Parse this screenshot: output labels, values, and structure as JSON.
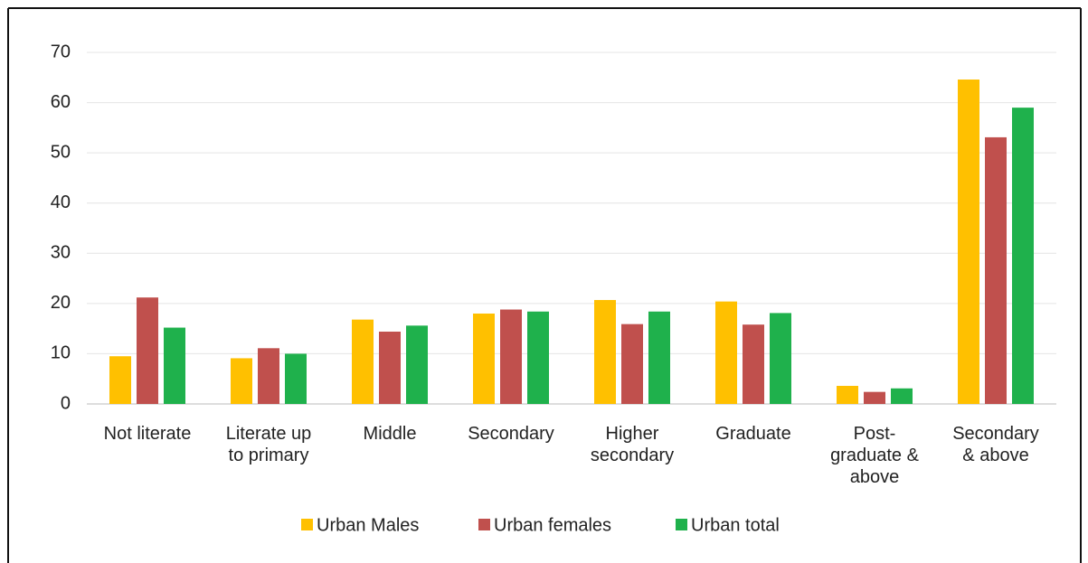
{
  "chart_data": {
    "type": "bar",
    "categories": [
      "Not literate",
      "Literate up\nto primary",
      "Middle",
      "Secondary",
      "Higher\nsecondary",
      "Graduate",
      "Post-\ngraduate &\nabove",
      "Secondary\n& above"
    ],
    "series": [
      {
        "name": "Urban Males",
        "color": "#ffc000",
        "values": [
          9.5,
          9.1,
          16.8,
          18.0,
          20.7,
          20.4,
          3.6,
          64.6
        ]
      },
      {
        "name": "Urban females",
        "color": "#c0504d",
        "values": [
          21.2,
          11.1,
          14.4,
          18.8,
          15.9,
          15.8,
          2.4,
          53.1
        ]
      },
      {
        "name": "Urban total",
        "color": "#1fb14c",
        "values": [
          15.2,
          10.0,
          15.6,
          18.4,
          18.4,
          18.1,
          3.1,
          59.0
        ]
      }
    ],
    "ylim": [
      0,
      70
    ],
    "yticks": [
      0,
      10,
      20,
      30,
      40,
      50,
      60,
      70
    ],
    "grid": true,
    "legend": "bottom"
  }
}
